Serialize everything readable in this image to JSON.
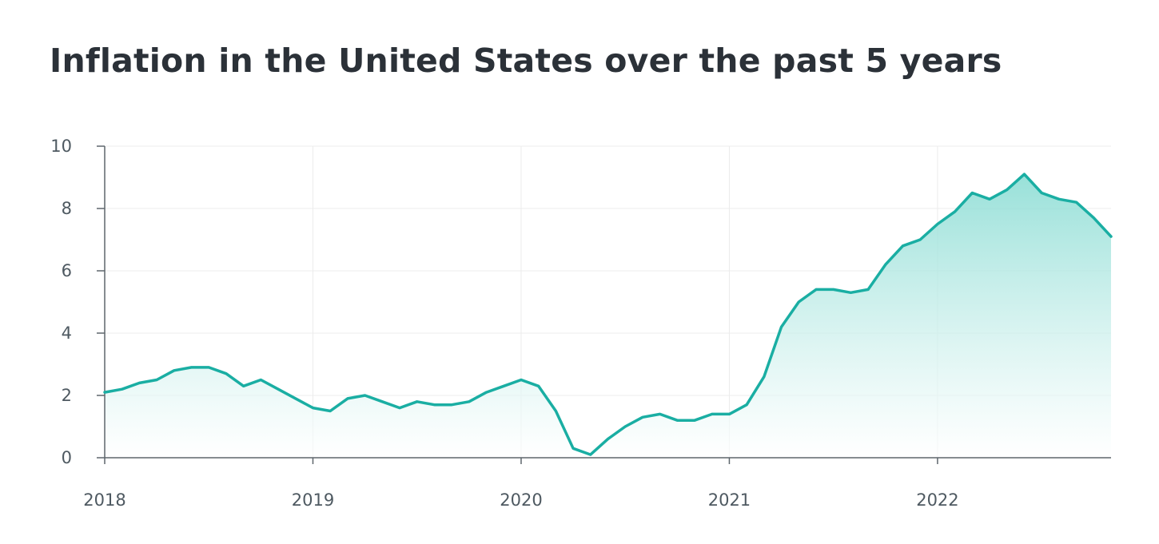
{
  "chart_data": {
    "type": "area",
    "title": "Inflation in the United States over the past 5 years",
    "xlabel": "",
    "ylabel": "",
    "xlim": [
      2018.0,
      2022.8333
    ],
    "ylim": [
      0,
      10
    ],
    "yticks": [
      0,
      2,
      4,
      6,
      8,
      10
    ],
    "xticks": [
      2018,
      2019,
      2020,
      2021,
      2022
    ],
    "grid": true,
    "legend": "none",
    "colors": {
      "line": "#1aaea3",
      "fill_top": "#86dbd2",
      "grid": "#ececec",
      "axis": "#5e666c",
      "text": "#4e5961",
      "title": "#2b3138"
    },
    "series": [
      {
        "x": [
          2018.0,
          2018.0833,
          2018.1667,
          2018.25,
          2018.3333,
          2018.4167,
          2018.5,
          2018.5833,
          2018.6667,
          2018.75,
          2018.8333,
          2018.9167,
          2019.0,
          2019.0833,
          2019.1667,
          2019.25,
          2019.3333,
          2019.4167,
          2019.5,
          2019.5833,
          2019.6667,
          2019.75,
          2019.8333,
          2019.9167,
          2020.0,
          2020.0833,
          2020.1667,
          2020.25,
          2020.3333,
          2020.4167,
          2020.5,
          2020.5833,
          2020.6667,
          2020.75,
          2020.8333,
          2020.9167,
          2021.0,
          2021.0833,
          2021.1667,
          2021.25,
          2021.3333,
          2021.4167,
          2021.5,
          2021.5833,
          2021.6667,
          2021.75,
          2021.8333,
          2021.9167,
          2022.0,
          2022.0833,
          2022.1667,
          2022.25,
          2022.3333,
          2022.4167,
          2022.5,
          2022.5833,
          2022.6667,
          2022.75,
          2022.8333
        ],
        "values": [
          2.1,
          2.2,
          2.4,
          2.5,
          2.8,
          2.9,
          2.9,
          2.7,
          2.3,
          2.5,
          2.2,
          1.9,
          1.6,
          1.5,
          1.9,
          2.0,
          1.8,
          1.6,
          1.8,
          1.7,
          1.7,
          1.8,
          2.1,
          2.3,
          2.5,
          2.3,
          1.5,
          0.3,
          0.1,
          0.6,
          1.0,
          1.3,
          1.4,
          1.2,
          1.2,
          1.4,
          1.4,
          1.7,
          2.6,
          4.2,
          5.0,
          5.4,
          5.4,
          5.3,
          5.4,
          6.2,
          6.8,
          7.0,
          7.5,
          7.9,
          8.5,
          8.3,
          8.6,
          9.1,
          8.5,
          8.3,
          8.2,
          7.7,
          7.1
        ]
      }
    ]
  }
}
